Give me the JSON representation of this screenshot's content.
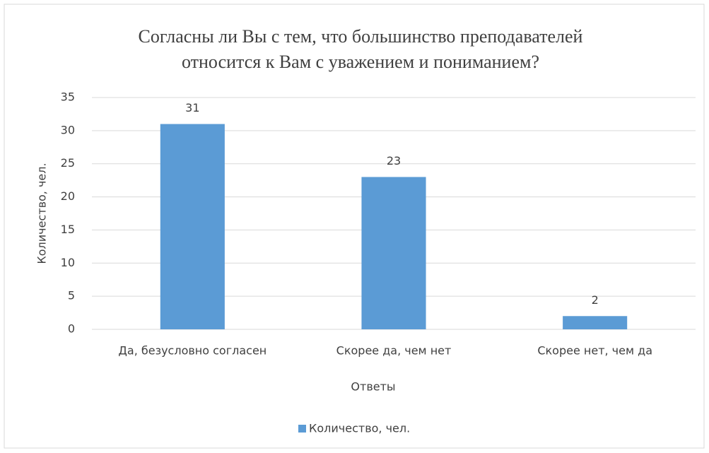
{
  "chart_data": {
    "type": "bar",
    "title": "Согласны ли Вы с тем, что большинство преподавателей относится к Вам с уважением и пониманием?",
    "title_lines": [
      "Согласны ли Вы с тем, что большинство преподавателей",
      "относится к Вам с уважением и пониманием?"
    ],
    "x_label": "Ответы",
    "y_label": "Количество, чел.",
    "categories": [
      "Да, безусловно согласен",
      "Скорее да, чем нет",
      "Скорее нет, чем да"
    ],
    "series": [
      {
        "name": "Количество, чел.",
        "color": "#5b9bd5",
        "values": [
          31,
          23,
          2
        ]
      }
    ],
    "ylim": [
      0,
      35
    ],
    "yticks": [
      0,
      5,
      10,
      15,
      20,
      25,
      30,
      35
    ],
    "grid": true,
    "legend": "bottom"
  }
}
